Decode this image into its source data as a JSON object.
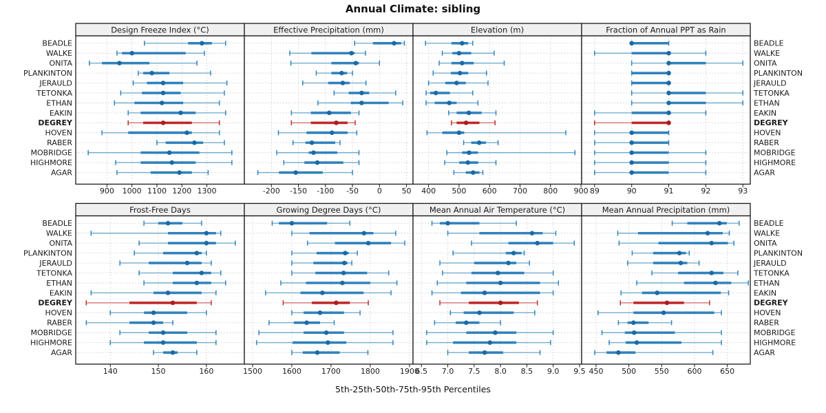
{
  "title": "Annual Climate: sibling",
  "caption": "5th-25th-50th-75th-95th Percentiles",
  "stations": [
    "BEADLE",
    "WALKE",
    "ONITA",
    "PLANKINTON",
    "JERAULD",
    "TETONKA",
    "ETHAN",
    "EAKIN",
    "DEGREY",
    "HOVEN",
    "RABER",
    "MOBRIDGE",
    "HIGHMORE",
    "AGAR"
  ],
  "highlight_station": "DEGREY",
  "colors": {
    "blue_dot": "#1b6aa5",
    "blue_bar": "#3182bd",
    "blue_whisker": "#74add1",
    "red_dot": "#a81e1e",
    "red_bar": "#bf2a2a",
    "red_whisker": "#d07070",
    "grid": "#c9c9c9",
    "header_bg": "#f0f0f0",
    "border": "#1a1a1a",
    "text": "#1a1a1a"
  },
  "chart_data": [
    {
      "type": "dotplot-percentile-intervals",
      "title": "Design Freeze Index (°C)",
      "xlim": [
        775,
        1450
      ],
      "ticks": [
        900,
        1000,
        1100,
        1200,
        1300
      ],
      "tick_labels": [
        "900",
        "1000",
        "1100",
        "1200",
        "1300"
      ],
      "values": [
        [
          1050,
          1225,
          1280,
          1320,
          1375
        ],
        [
          940,
          960,
          1000,
          1215,
          1290
        ],
        [
          830,
          880,
          950,
          1070,
          1260
        ],
        [
          1025,
          1045,
          1080,
          1150,
          1315
        ],
        [
          1005,
          1060,
          1125,
          1205,
          1380
        ],
        [
          955,
          1040,
          1125,
          1195,
          1370
        ],
        [
          930,
          1010,
          1120,
          1205,
          1350
        ],
        [
          985,
          1035,
          1195,
          1255,
          1375
        ],
        [
          985,
          1045,
          1125,
          1240,
          1350
        ],
        [
          880,
          985,
          1220,
          1240,
          1350
        ],
        [
          1100,
          1135,
          1250,
          1285,
          1370
        ],
        [
          825,
          1035,
          1150,
          1270,
          1400
        ],
        [
          935,
          1035,
          1160,
          1255,
          1400
        ],
        [
          940,
          1075,
          1190,
          1240,
          1305
        ]
      ]
    },
    {
      "type": "dotplot-percentile-intervals",
      "title": "Effective Precipitation (mm)",
      "xlim": [
        -250,
        62
      ],
      "ticks": [
        -200,
        -150,
        -100,
        -50,
        0,
        50
      ],
      "tick_labels": [
        "-200",
        "-150",
        "-100",
        "-50",
        "0",
        "50"
      ],
      "values": [
        [
          -46,
          -12,
          27,
          40,
          46
        ],
        [
          -166,
          -126,
          -52,
          -46,
          -26
        ],
        [
          -164,
          -89,
          -44,
          -38,
          0
        ],
        [
          -117,
          -89,
          -70,
          -60,
          -50
        ],
        [
          -142,
          -95,
          -68,
          -55,
          -25
        ],
        [
          -84,
          -57,
          -33,
          -19,
          30
        ],
        [
          -114,
          -53,
          -33,
          17,
          43
        ],
        [
          -163,
          -127,
          -93,
          -53,
          -38
        ],
        [
          -163,
          -127,
          -80,
          -59,
          -45
        ],
        [
          -187,
          -135,
          -88,
          -59,
          -42
        ],
        [
          -160,
          -137,
          -125,
          -82,
          -73
        ],
        [
          -190,
          -131,
          -122,
          -78,
          -38
        ],
        [
          -177,
          -139,
          -115,
          -67,
          -38
        ],
        [
          -225,
          -186,
          -155,
          -105,
          -50
        ]
      ]
    },
    {
      "type": "dotplot-percentile-intervals",
      "title": "Elevation (m)",
      "xlim": [
        349,
        902
      ],
      "ticks": [
        400,
        500,
        600,
        700,
        800,
        900
      ],
      "tick_labels": [
        "400",
        "500",
        "600",
        "700",
        "800",
        "900"
      ],
      "values": [
        [
          390,
          475,
          510,
          530,
          545
        ],
        [
          445,
          478,
          500,
          540,
          615
        ],
        [
          435,
          475,
          510,
          548,
          648
        ],
        [
          415,
          473,
          503,
          530,
          590
        ],
        [
          400,
          455,
          492,
          522,
          595
        ],
        [
          392,
          405,
          424,
          470,
          545
        ],
        [
          392,
          420,
          468,
          492,
          562
        ],
        [
          466,
          492,
          532,
          574,
          621
        ],
        [
          475,
          492,
          523,
          567,
          618
        ],
        [
          395,
          445,
          500,
          517,
          850
        ],
        [
          515,
          540,
          566,
          588,
          628
        ],
        [
          460,
          510,
          533,
          562,
          880
        ],
        [
          453,
          501,
          529,
          563,
          621
        ],
        [
          483,
          522,
          546,
          567,
          578
        ]
      ]
    },
    {
      "type": "dotplot-percentile-intervals",
      "title": "Fraction of Annual PPT as Rain",
      "xlim": [
        88.65,
        93.2
      ],
      "ticks": [
        89,
        90,
        91,
        92,
        93
      ],
      "tick_labels": [
        "89",
        "90",
        "91",
        "92",
        "93"
      ],
      "values": [
        [
          90,
          90,
          90,
          91,
          91
        ],
        [
          89,
          90,
          91,
          91,
          92
        ],
        [
          90,
          91,
          91,
          92,
          93
        ],
        [
          90,
          90,
          91,
          91,
          91
        ],
        [
          90,
          90,
          91,
          91,
          91
        ],
        [
          90,
          91,
          91,
          92,
          93
        ],
        [
          90,
          91,
          91,
          92,
          93
        ],
        [
          89,
          90,
          91,
          91,
          92
        ],
        [
          89,
          90,
          91,
          91,
          91
        ],
        [
          89,
          90,
          90,
          91,
          91
        ],
        [
          89,
          90,
          90,
          91,
          91
        ],
        [
          89,
          90,
          90,
          91,
          92
        ],
        [
          89,
          90,
          90,
          91,
          92
        ],
        [
          89,
          90,
          90,
          91,
          92
        ]
      ]
    },
    {
      "type": "dotplot-percentile-intervals",
      "title": "Frost-Free Days",
      "xlim": [
        132.8,
        167.9
      ],
      "ticks": [
        140,
        150,
        160
      ],
      "tick_labels": [
        "140",
        "150",
        "160"
      ],
      "values": [
        [
          147,
          150,
          152,
          155,
          159
        ],
        [
          136,
          152,
          160,
          162,
          163
        ],
        [
          146,
          152,
          160,
          162,
          166
        ],
        [
          145,
          151,
          158,
          159,
          160
        ],
        [
          142,
          148,
          156,
          159,
          161
        ],
        [
          146,
          153,
          159,
          161,
          163
        ],
        [
          147,
          153,
          158,
          161,
          164
        ],
        [
          136,
          149,
          152,
          159,
          162
        ],
        [
          135,
          144,
          153,
          158,
          161
        ],
        [
          140,
          147,
          149,
          156,
          160
        ],
        [
          135,
          144,
          149,
          151,
          153
        ],
        [
          142,
          148,
          151,
          156,
          162
        ],
        [
          140,
          147,
          151,
          158,
          162
        ],
        [
          149,
          151,
          153,
          154,
          158
        ]
      ]
    },
    {
      "type": "dotplot-percentile-intervals",
      "title": "Growing Degree Days (°C)",
      "xlim": [
        1479,
        1909
      ],
      "ticks": [
        1500,
        1600,
        1700,
        1800,
        1900
      ],
      "tick_labels": [
        "1500",
        "1600",
        "1700",
        "1800",
        "1900"
      ],
      "values": [
        [
          1550,
          1567,
          1600,
          1690,
          1748
        ],
        [
          1600,
          1645,
          1784,
          1808,
          1865
        ],
        [
          1640,
          1710,
          1795,
          1853,
          1888
        ],
        [
          1600,
          1663,
          1736,
          1745,
          1767
        ],
        [
          1600,
          1655,
          1734,
          1742,
          1753
        ],
        [
          1600,
          1660,
          1732,
          1792,
          1847
        ],
        [
          1572,
          1636,
          1729,
          1800,
          1868
        ],
        [
          1533,
          1622,
          1678,
          1783,
          1853
        ],
        [
          1578,
          1651,
          1713,
          1748,
          1795
        ],
        [
          1600,
          1630,
          1672,
          1733,
          1774
        ],
        [
          1542,
          1605,
          1638,
          1672,
          1708
        ],
        [
          1516,
          1630,
          1688,
          1733,
          1858
        ],
        [
          1510,
          1602,
          1692,
          1739,
          1858
        ],
        [
          1600,
          1628,
          1665,
          1722,
          1794
        ]
      ]
    },
    {
      "type": "dotplot-percentile-intervals",
      "title": "Mean Annual Air Temperature (°C)",
      "xlim": [
        6.34,
        9.54
      ],
      "ticks": [
        6.5,
        7.0,
        7.5,
        8.0,
        8.5,
        9.0,
        9.5
      ],
      "tick_labels": [
        "6.5",
        "7.0",
        "7.5",
        "8.0",
        "8.5",
        "9.0",
        "9.5"
      ],
      "values": [
        [
          6.7,
          6.85,
          7.0,
          7.6,
          8.3
        ],
        [
          7.0,
          7.6,
          8.6,
          8.8,
          9.05
        ],
        [
          7.45,
          8.15,
          8.7,
          9.0,
          9.4
        ],
        [
          7.1,
          8.1,
          8.25,
          8.4,
          8.45
        ],
        [
          6.85,
          7.5,
          8.15,
          8.3,
          8.55
        ],
        [
          6.9,
          7.45,
          7.95,
          8.45,
          9.0
        ],
        [
          6.8,
          7.35,
          8.0,
          8.75,
          9.1
        ],
        [
          6.7,
          7.25,
          7.7,
          8.75,
          9.0
        ],
        [
          6.85,
          7.4,
          8.0,
          8.35,
          8.7
        ],
        [
          7.05,
          7.3,
          7.6,
          8.25,
          8.65
        ],
        [
          6.75,
          7.15,
          7.35,
          7.6,
          8.0
        ],
        [
          6.6,
          7.35,
          7.9,
          8.3,
          9.0
        ],
        [
          6.6,
          7.1,
          7.8,
          8.3,
          8.95
        ],
        [
          7.0,
          7.4,
          7.7,
          8.05,
          8.75
        ]
      ]
    },
    {
      "type": "dotplot-percentile-intervals",
      "title": "Mean Annual Precipitation (mm)",
      "xlim": [
        428,
        685
      ],
      "ticks": [
        450,
        500,
        550,
        600,
        650
      ],
      "tick_labels": [
        "450",
        "500",
        "550",
        "600",
        "650"
      ],
      "values": [
        [
          566,
          589,
          638,
          649,
          668
        ],
        [
          483,
          514,
          620,
          643,
          653
        ],
        [
          485,
          545,
          626,
          651,
          660
        ],
        [
          505,
          537,
          577,
          587,
          592
        ],
        [
          498,
          537,
          579,
          589,
          607
        ],
        [
          535,
          575,
          626,
          644,
          666
        ],
        [
          512,
          584,
          632,
          656,
          682
        ],
        [
          488,
          520,
          543,
          640,
          652
        ],
        [
          487,
          507,
          558,
          584,
          623
        ],
        [
          453,
          507,
          553,
          630,
          641
        ],
        [
          484,
          498,
          507,
          530,
          565
        ],
        [
          459,
          494,
          508,
          570,
          641
        ],
        [
          470,
          495,
          512,
          580,
          641
        ],
        [
          448,
          466,
          484,
          510,
          628
        ]
      ]
    }
  ]
}
